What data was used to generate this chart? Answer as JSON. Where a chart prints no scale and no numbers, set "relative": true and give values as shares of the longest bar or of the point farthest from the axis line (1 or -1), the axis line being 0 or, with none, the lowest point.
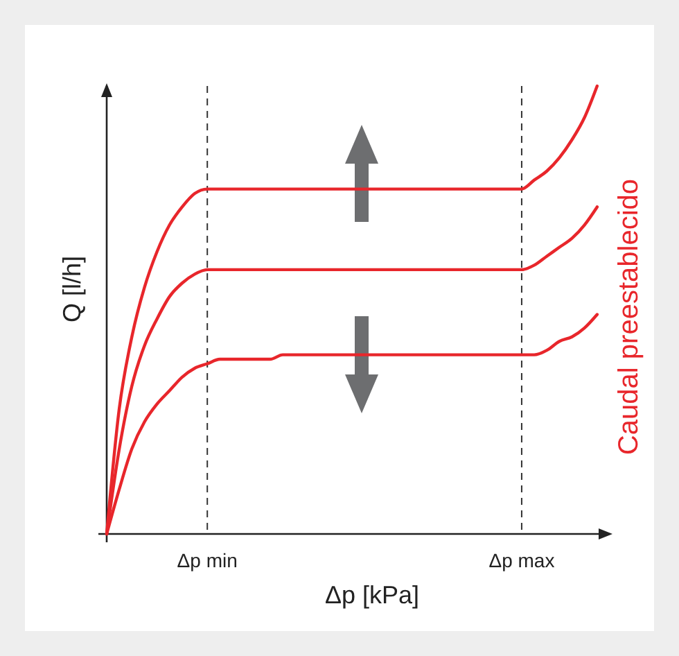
{
  "chart_data": {
    "type": "line",
    "relative": true,
    "xlabel": "Δp [kPa]",
    "ylabel": "Q [l/h]",
    "categories": [
      null,
      null,
      null,
      null,
      null,
      null,
      null,
      null,
      "Δp min",
      null,
      null,
      null,
      null,
      null,
      null,
      null,
      null,
      null,
      null,
      null,
      null,
      null,
      null,
      null,
      null,
      null,
      null,
      null,
      null,
      null,
      null,
      null,
      null,
      "Δp max",
      null,
      null,
      null,
      null,
      null,
      null,
      null
    ],
    "ref_lines": [
      {
        "axis": "x",
        "value": "Δp min",
        "color": "#333333",
        "line_style": "dashed"
      },
      {
        "axis": "x",
        "value": "Δp max",
        "color": "#333333",
        "line_style": "dashed"
      }
    ],
    "annotations": [
      "Caudal preestablecido"
    ],
    "marker": "none",
    "line_style": "solid",
    "series": [
      {
        "color": "#e8262b",
        "values": [
          0,
          0.28,
          0.44,
          0.55,
          0.63,
          0.69,
          0.73,
          0.76,
          0.77,
          0.77,
          0.77,
          0.77,
          0.77,
          0.77,
          0.77,
          0.77,
          0.77,
          0.77,
          0.77,
          0.77,
          0.77,
          0.77,
          0.77,
          0.77,
          0.77,
          0.77,
          0.77,
          0.77,
          0.77,
          0.77,
          0.77,
          0.77,
          0.77,
          0.77,
          0.79,
          0.81,
          0.84,
          0.88,
          0.93,
          1,
          null
        ]
      },
      {
        "color": "#e8262b",
        "values": [
          0,
          0.19,
          0.33,
          0.42,
          0.48,
          0.53,
          0.56,
          0.58,
          0.59,
          0.59,
          0.59,
          0.59,
          0.59,
          0.59,
          0.59,
          0.59,
          0.59,
          0.59,
          0.59,
          0.59,
          0.59,
          0.59,
          0.59,
          0.59,
          0.59,
          0.59,
          0.59,
          0.59,
          0.59,
          0.59,
          0.59,
          0.59,
          0.59,
          0.59,
          0.6,
          0.62,
          0.64,
          0.66,
          0.69,
          0.73,
          null
        ]
      },
      {
        "color": "#e8262b",
        "values": [
          0,
          0.1,
          0.19,
          0.25,
          0.29,
          0.32,
          0.35,
          0.37,
          0.38,
          0.39,
          0.39,
          0.39,
          0.39,
          0.39,
          0.4,
          0.4,
          0.4,
          0.4,
          0.4,
          0.4,
          0.4,
          0.4,
          0.4,
          0.4,
          0.4,
          0.4,
          0.4,
          0.4,
          0.4,
          0.4,
          0.4,
          0.4,
          0.4,
          0.4,
          0.4,
          0.41,
          0.43,
          0.44,
          0.46,
          0.49,
          null
        ]
      }
    ]
  }
}
